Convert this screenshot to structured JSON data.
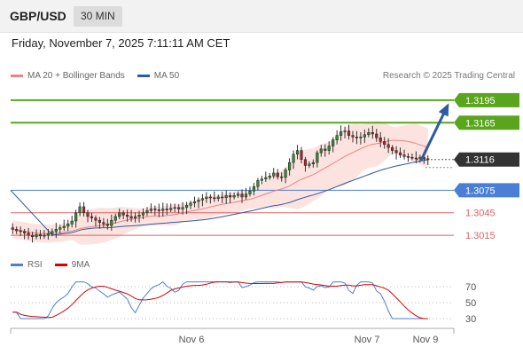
{
  "header": {
    "pair": "GBP/USD",
    "timeframe": "30 MIN",
    "datetime": "Friday, November 7, 2025 7:11:11 AM CET"
  },
  "legend": {
    "ma20_label": "MA 20 + Bollinger Bands",
    "ma50_label": "MA 50",
    "credit": "Research © 2025 Trading Central",
    "rsi_label": "RSI",
    "rsi_ma_label": "9MA"
  },
  "colors": {
    "ma20": "#f08080",
    "ma50": "#2e5a9e",
    "resistance": "#5aa51e",
    "pivot": "#4a7fd6",
    "support": "#e06060",
    "current": "#333333",
    "arrow": "#2e5a9e",
    "rsi": "#4a7fd6",
    "rsi_ma": "#dd0000"
  },
  "chart_data": {
    "type": "candlestick",
    "price_range": [
      1.2995,
      1.3215
    ],
    "x_labels": [
      "Nov 6",
      "Nov 7",
      "Nov 9"
    ],
    "levels": [
      {
        "value": 1.3195,
        "label": "1.3195",
        "kind": "resistance"
      },
      {
        "value": 1.3165,
        "label": "1.3165",
        "kind": "resistance"
      },
      {
        "value": 1.3116,
        "label": "1.3116",
        "kind": "current"
      },
      {
        "value": 1.3075,
        "label": "1.3075",
        "kind": "pivot"
      },
      {
        "value": 1.3045,
        "label": "1.3045",
        "kind": "support"
      },
      {
        "value": 1.3015,
        "label": "1.3015",
        "kind": "support"
      }
    ],
    "arrow": {
      "from": 1.3116,
      "to": 1.3195
    },
    "closes": [
      1.3023,
      1.3021,
      1.302,
      1.3018,
      1.3015,
      1.3013,
      1.3016,
      1.3014,
      1.3015,
      1.3017,
      1.302,
      1.3023,
      1.3025,
      1.3027,
      1.303,
      1.3034,
      1.3045,
      1.3053,
      1.3045,
      1.304,
      1.3038,
      1.3035,
      1.3032,
      1.303,
      1.3028,
      1.3035,
      1.304,
      1.3045,
      1.3042,
      1.304,
      1.3038,
      1.304,
      1.3042,
      1.3045,
      1.3048,
      1.305,
      1.3049,
      1.3048,
      1.305,
      1.3049,
      1.3051,
      1.3052,
      1.305,
      1.3052,
      1.3055,
      1.3058,
      1.306,
      1.3062,
      1.3064,
      1.3066,
      1.3065,
      1.3064,
      1.3066,
      1.3065,
      1.3068,
      1.3066,
      1.3068,
      1.307,
      1.3066,
      1.307,
      1.3074,
      1.308,
      1.3088,
      1.309,
      1.3092,
      1.3094,
      1.3098,
      1.3093,
      1.3092,
      1.3102,
      1.3112,
      1.3123,
      1.3128,
      1.3116,
      1.3108,
      1.311,
      1.3112,
      1.3125,
      1.313,
      1.3128,
      1.3134,
      1.3142,
      1.3148,
      1.3153,
      1.3154,
      1.3148,
      1.3146,
      1.3145,
      1.3146,
      1.3149,
      1.3152,
      1.315,
      1.3145,
      1.314,
      1.3136,
      1.3132,
      1.3128,
      1.3125,
      1.3122,
      1.312,
      1.3119,
      1.3118,
      1.3117,
      1.3119,
      1.3117,
      1.3116
    ],
    "rsi": {
      "y_ticks": [
        70,
        50,
        30
      ],
      "range": [
        20,
        80
      ]
    }
  }
}
